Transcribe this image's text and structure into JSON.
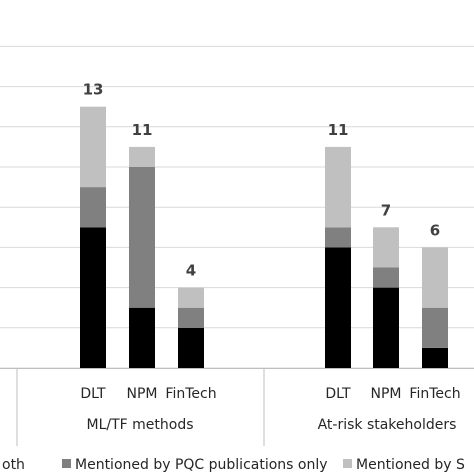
{
  "chart_data": {
    "type": "bar",
    "stacked": true,
    "groups": [
      {
        "label": "ML/TF methods",
        "categories": [
          "DLT",
          "NPM",
          "FinTech"
        ]
      },
      {
        "label": "At-risk stakeholders",
        "categories": [
          "DLT",
          "NPM",
          "FinTech"
        ]
      }
    ],
    "series": [
      {
        "name": "Mentioned by both",
        "visible_name": "oth",
        "color": "#000000",
        "values": [
          7,
          3,
          2,
          6,
          4,
          1
        ]
      },
      {
        "name": "Mentioned by PQC publications only",
        "color": "#808080",
        "values": [
          2,
          7,
          1,
          1,
          1,
          2
        ]
      },
      {
        "name": "Mentioned by S",
        "visible_name": "Mentioned by S",
        "color": "#c0c0c0",
        "values": [
          4,
          1,
          1,
          4,
          2,
          3
        ]
      }
    ],
    "totals": [
      "13",
      "11",
      "4",
      "11",
      "7",
      "6"
    ],
    "ylim": [
      0,
      16
    ],
    "grid": true,
    "legend": "bottom"
  }
}
